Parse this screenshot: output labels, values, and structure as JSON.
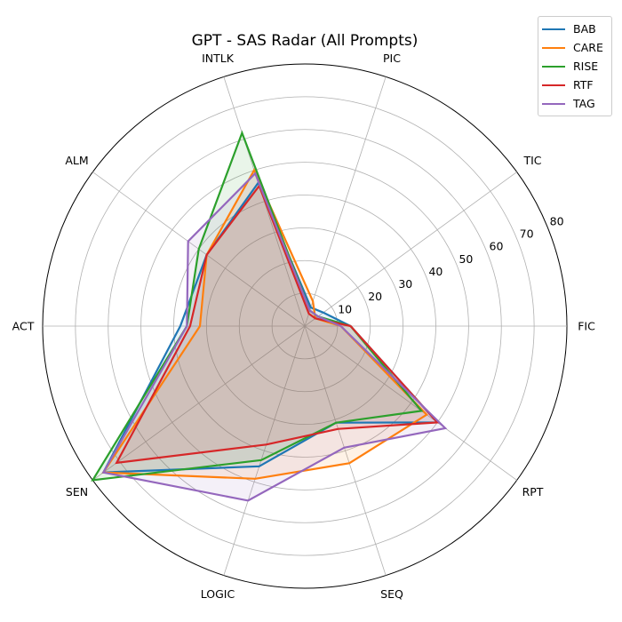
{
  "chart_data": {
    "type": "radar",
    "title": "GPT - SAS Radar (All Prompts)",
    "axes": [
      "FIC",
      "TIC",
      "PIC",
      "INTLK",
      "ALM",
      "ACT",
      "SEN",
      "LOGIC",
      "SEQ",
      "RPT"
    ],
    "rlim": [
      0,
      80
    ],
    "radial_ticks": [
      10,
      20,
      30,
      40,
      50,
      60,
      70,
      80
    ],
    "grid": true,
    "legend_position": "top-right",
    "series": [
      {
        "name": "BAB",
        "color": "#1f77b4",
        "values": [
          14,
          7,
          6,
          46,
          37,
          38,
          76,
          45,
          31,
          50
        ]
      },
      {
        "name": "CARE",
        "color": "#ff7f0e",
        "values": [
          11,
          4,
          8,
          50,
          37,
          32,
          76,
          49,
          44,
          46
        ]
      },
      {
        "name": "RISE",
        "color": "#2ca02c",
        "values": [
          14,
          5,
          5,
          62,
          40,
          36,
          80,
          43,
          31,
          44
        ]
      },
      {
        "name": "RTF",
        "color": "#d62728",
        "values": [
          14,
          4,
          4,
          45,
          37,
          35,
          71,
          38,
          33,
          50
        ]
      },
      {
        "name": "TAG",
        "color": "#9467bd",
        "values": [
          11,
          5,
          5,
          49,
          44,
          36,
          76,
          56,
          39,
          53
        ]
      }
    ]
  }
}
